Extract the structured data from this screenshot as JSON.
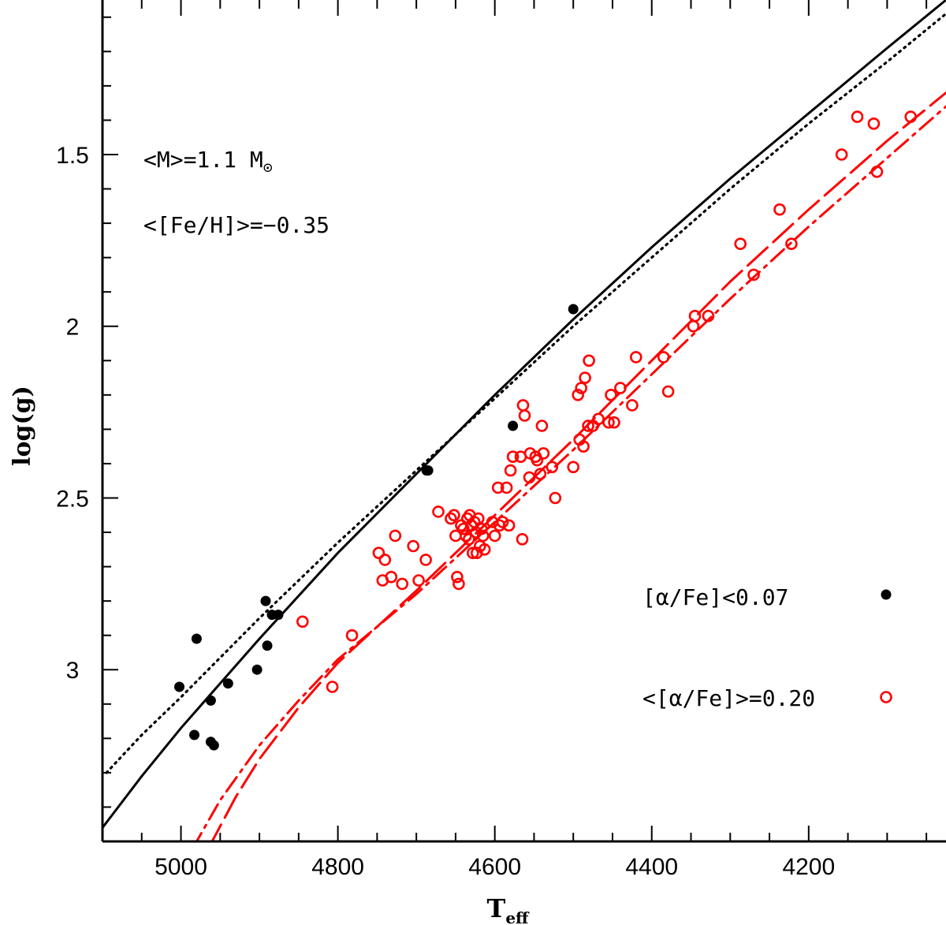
{
  "chart_data": {
    "type": "scatter",
    "xlabel": "T",
    "xlabel_sub": "eff",
    "ylabel": "log(g)",
    "xlim": [
      5100,
      4025
    ],
    "ylim": [
      3.5,
      1.05
    ],
    "x_ticks": [
      "5000",
      "4800",
      "4600",
      "4400",
      "4200"
    ],
    "y_ticks": [
      "1.5",
      "2",
      "2.5",
      "3"
    ],
    "annotations": {
      "mass": "<M>=1.1 M",
      "mass_symbol": "⊙",
      "feh": "<[Fe/H]>=−0.35"
    },
    "legend": [
      {
        "label": "[α/Fe]<0.07",
        "marker": "filled-circle",
        "color": "#000000"
      },
      {
        "label": "<[α/Fe]>=0.20",
        "marker": "open-circle",
        "color": "#ff0000"
      }
    ],
    "series": [
      {
        "name": "[α/Fe]<0.07",
        "kind": "scatter",
        "marker": "filled",
        "color": "#000000",
        "points": [
          [
            5002,
            3.05
          ],
          [
            4980,
            2.91
          ],
          [
            4983,
            3.19
          ],
          [
            4962,
            3.09
          ],
          [
            4962,
            3.21
          ],
          [
            4958,
            3.22
          ],
          [
            4940,
            3.04
          ],
          [
            4903,
            3.0
          ],
          [
            4890,
            2.93
          ],
          [
            4892,
            2.8
          ],
          [
            4884,
            2.84
          ],
          [
            4876,
            2.84
          ],
          [
            4687,
            2.42
          ],
          [
            4685,
            2.42
          ],
          [
            4577,
            2.29
          ],
          [
            4500,
            1.95
          ]
        ]
      },
      {
        "name": "<[α/Fe]>=0.20",
        "kind": "scatter",
        "marker": "open",
        "color": "#ff0000",
        "points": [
          [
            4845,
            2.86
          ],
          [
            4807,
            3.05
          ],
          [
            4782,
            2.9
          ],
          [
            4748,
            2.66
          ],
          [
            4743,
            2.74
          ],
          [
            4740,
            2.68
          ],
          [
            4732,
            2.73
          ],
          [
            4727,
            2.61
          ],
          [
            4718,
            2.75
          ],
          [
            4704,
            2.64
          ],
          [
            4697,
            2.74
          ],
          [
            4688,
            2.68
          ],
          [
            4672,
            2.54
          ],
          [
            4656,
            2.56
          ],
          [
            4652,
            2.55
          ],
          [
            4650,
            2.61
          ],
          [
            4648,
            2.73
          ],
          [
            4646,
            2.75
          ],
          [
            4643,
            2.58
          ],
          [
            4640,
            2.59
          ],
          [
            4637,
            2.61
          ],
          [
            4635,
            2.56
          ],
          [
            4633,
            2.62
          ],
          [
            4632,
            2.55
          ],
          [
            4630,
            2.58
          ],
          [
            4628,
            2.66
          ],
          [
            4626,
            2.57
          ],
          [
            4624,
            2.6
          ],
          [
            4623,
            2.66
          ],
          [
            4621,
            2.56
          ],
          [
            4619,
            2.64
          ],
          [
            4617,
            2.59
          ],
          [
            4615,
            2.61
          ],
          [
            4613,
            2.65
          ],
          [
            4603,
            2.57
          ],
          [
            4600,
            2.61
          ],
          [
            4596,
            2.47
          ],
          [
            4594,
            2.58
          ],
          [
            4590,
            2.57
          ],
          [
            4585,
            2.47
          ],
          [
            4582,
            2.58
          ],
          [
            4580,
            2.42
          ],
          [
            4577,
            2.38
          ],
          [
            4567,
            2.38
          ],
          [
            4565,
            2.62
          ],
          [
            4564,
            2.23
          ],
          [
            4562,
            2.26
          ],
          [
            4556,
            2.44
          ],
          [
            4555,
            2.37
          ],
          [
            4548,
            2.38
          ],
          [
            4546,
            2.39
          ],
          [
            4542,
            2.43
          ],
          [
            4540,
            2.29
          ],
          [
            4538,
            2.37
          ],
          [
            4527,
            2.41
          ],
          [
            4523,
            2.5
          ],
          [
            4500,
            2.41
          ],
          [
            4494,
            2.2
          ],
          [
            4492,
            2.33
          ],
          [
            4490,
            2.18
          ],
          [
            4487,
            2.35
          ],
          [
            4485,
            2.15
          ],
          [
            4481,
            2.29
          ],
          [
            4480,
            2.1
          ],
          [
            4475,
            2.29
          ],
          [
            4468,
            2.27
          ],
          [
            4455,
            2.28
          ],
          [
            4452,
            2.2
          ],
          [
            4448,
            2.28
          ],
          [
            4440,
            2.18
          ],
          [
            4425,
            2.23
          ],
          [
            4420,
            2.09
          ],
          [
            4385,
            2.09
          ],
          [
            4379,
            2.19
          ],
          [
            4347,
            2.0
          ],
          [
            4345,
            1.97
          ],
          [
            4328,
            1.97
          ],
          [
            4287,
            1.76
          ],
          [
            4270,
            1.85
          ],
          [
            4237,
            1.66
          ],
          [
            4222,
            1.76
          ],
          [
            4158,
            1.5
          ],
          [
            4138,
            1.39
          ],
          [
            4117,
            1.41
          ],
          [
            4113,
            1.55
          ],
          [
            4070,
            1.39
          ]
        ]
      },
      {
        "name": "solid-isochrone",
        "kind": "line",
        "style": "solid",
        "color": "#000000",
        "points": [
          [
            5100,
            3.46
          ],
          [
            5050,
            3.31
          ],
          [
            5000,
            3.17
          ],
          [
            4900,
            2.91
          ],
          [
            4800,
            2.66
          ],
          [
            4700,
            2.43
          ],
          [
            4600,
            2.2
          ],
          [
            4500,
            1.98
          ],
          [
            4400,
            1.77
          ],
          [
            4300,
            1.57
          ],
          [
            4200,
            1.38
          ],
          [
            4100,
            1.19
          ],
          [
            4025,
            1.05
          ]
        ]
      },
      {
        "name": "dotted-isochrone",
        "kind": "line",
        "style": "dotted",
        "color": "#000000",
        "points": [
          [
            5095,
            3.3
          ],
          [
            5050,
            3.19
          ],
          [
            5000,
            3.08
          ],
          [
            4900,
            2.85
          ],
          [
            4800,
            2.63
          ],
          [
            4700,
            2.42
          ],
          [
            4600,
            2.21
          ],
          [
            4500,
            2.0
          ],
          [
            4400,
            1.8
          ],
          [
            4300,
            1.6
          ],
          [
            4200,
            1.41
          ],
          [
            4100,
            1.23
          ],
          [
            4025,
            1.09
          ]
        ]
      },
      {
        "name": "dashed-isochrone",
        "kind": "line",
        "style": "dashed",
        "color": "#ff0000",
        "points": [
          [
            4965,
            3.52
          ],
          [
            4930,
            3.37
          ],
          [
            4900,
            3.26
          ],
          [
            4850,
            3.11
          ],
          [
            4800,
            2.98
          ],
          [
            4700,
            2.77
          ],
          [
            4600,
            2.55
          ],
          [
            4500,
            2.33
          ],
          [
            4400,
            2.1
          ],
          [
            4300,
            1.87
          ],
          [
            4200,
            1.66
          ],
          [
            4100,
            1.46
          ],
          [
            4025,
            1.32
          ]
        ]
      },
      {
        "name": "dash-dot-isochrone",
        "kind": "line",
        "style": "dashdot",
        "color": "#ff0000",
        "points": [
          [
            4985,
            3.52
          ],
          [
            4950,
            3.38
          ],
          [
            4900,
            3.22
          ],
          [
            4850,
            3.09
          ],
          [
            4800,
            2.97
          ],
          [
            4700,
            2.78
          ],
          [
            4600,
            2.57
          ],
          [
            4500,
            2.36
          ],
          [
            4400,
            2.14
          ],
          [
            4300,
            1.92
          ],
          [
            4200,
            1.71
          ],
          [
            4100,
            1.51
          ],
          [
            4025,
            1.36
          ]
        ]
      }
    ]
  }
}
